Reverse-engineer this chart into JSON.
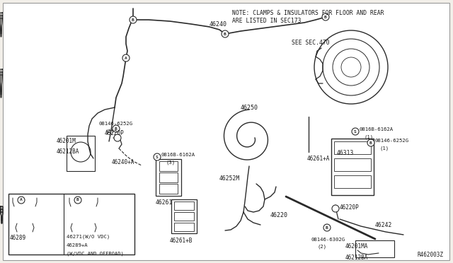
{
  "bg_color": "#f2efe9",
  "line_color": "#2a2a2a",
  "text_color": "#1a1a1a",
  "note_text": "NOTE: CLAMPS & INSULATORS FOR FLOOR AND REAR\nARE LISTED IN SEC173",
  "see_sec": "SEE SEC.470",
  "ref_code": "R462003Z",
  "fig_w": 6.4,
  "fig_h": 3.72,
  "dpi": 100
}
